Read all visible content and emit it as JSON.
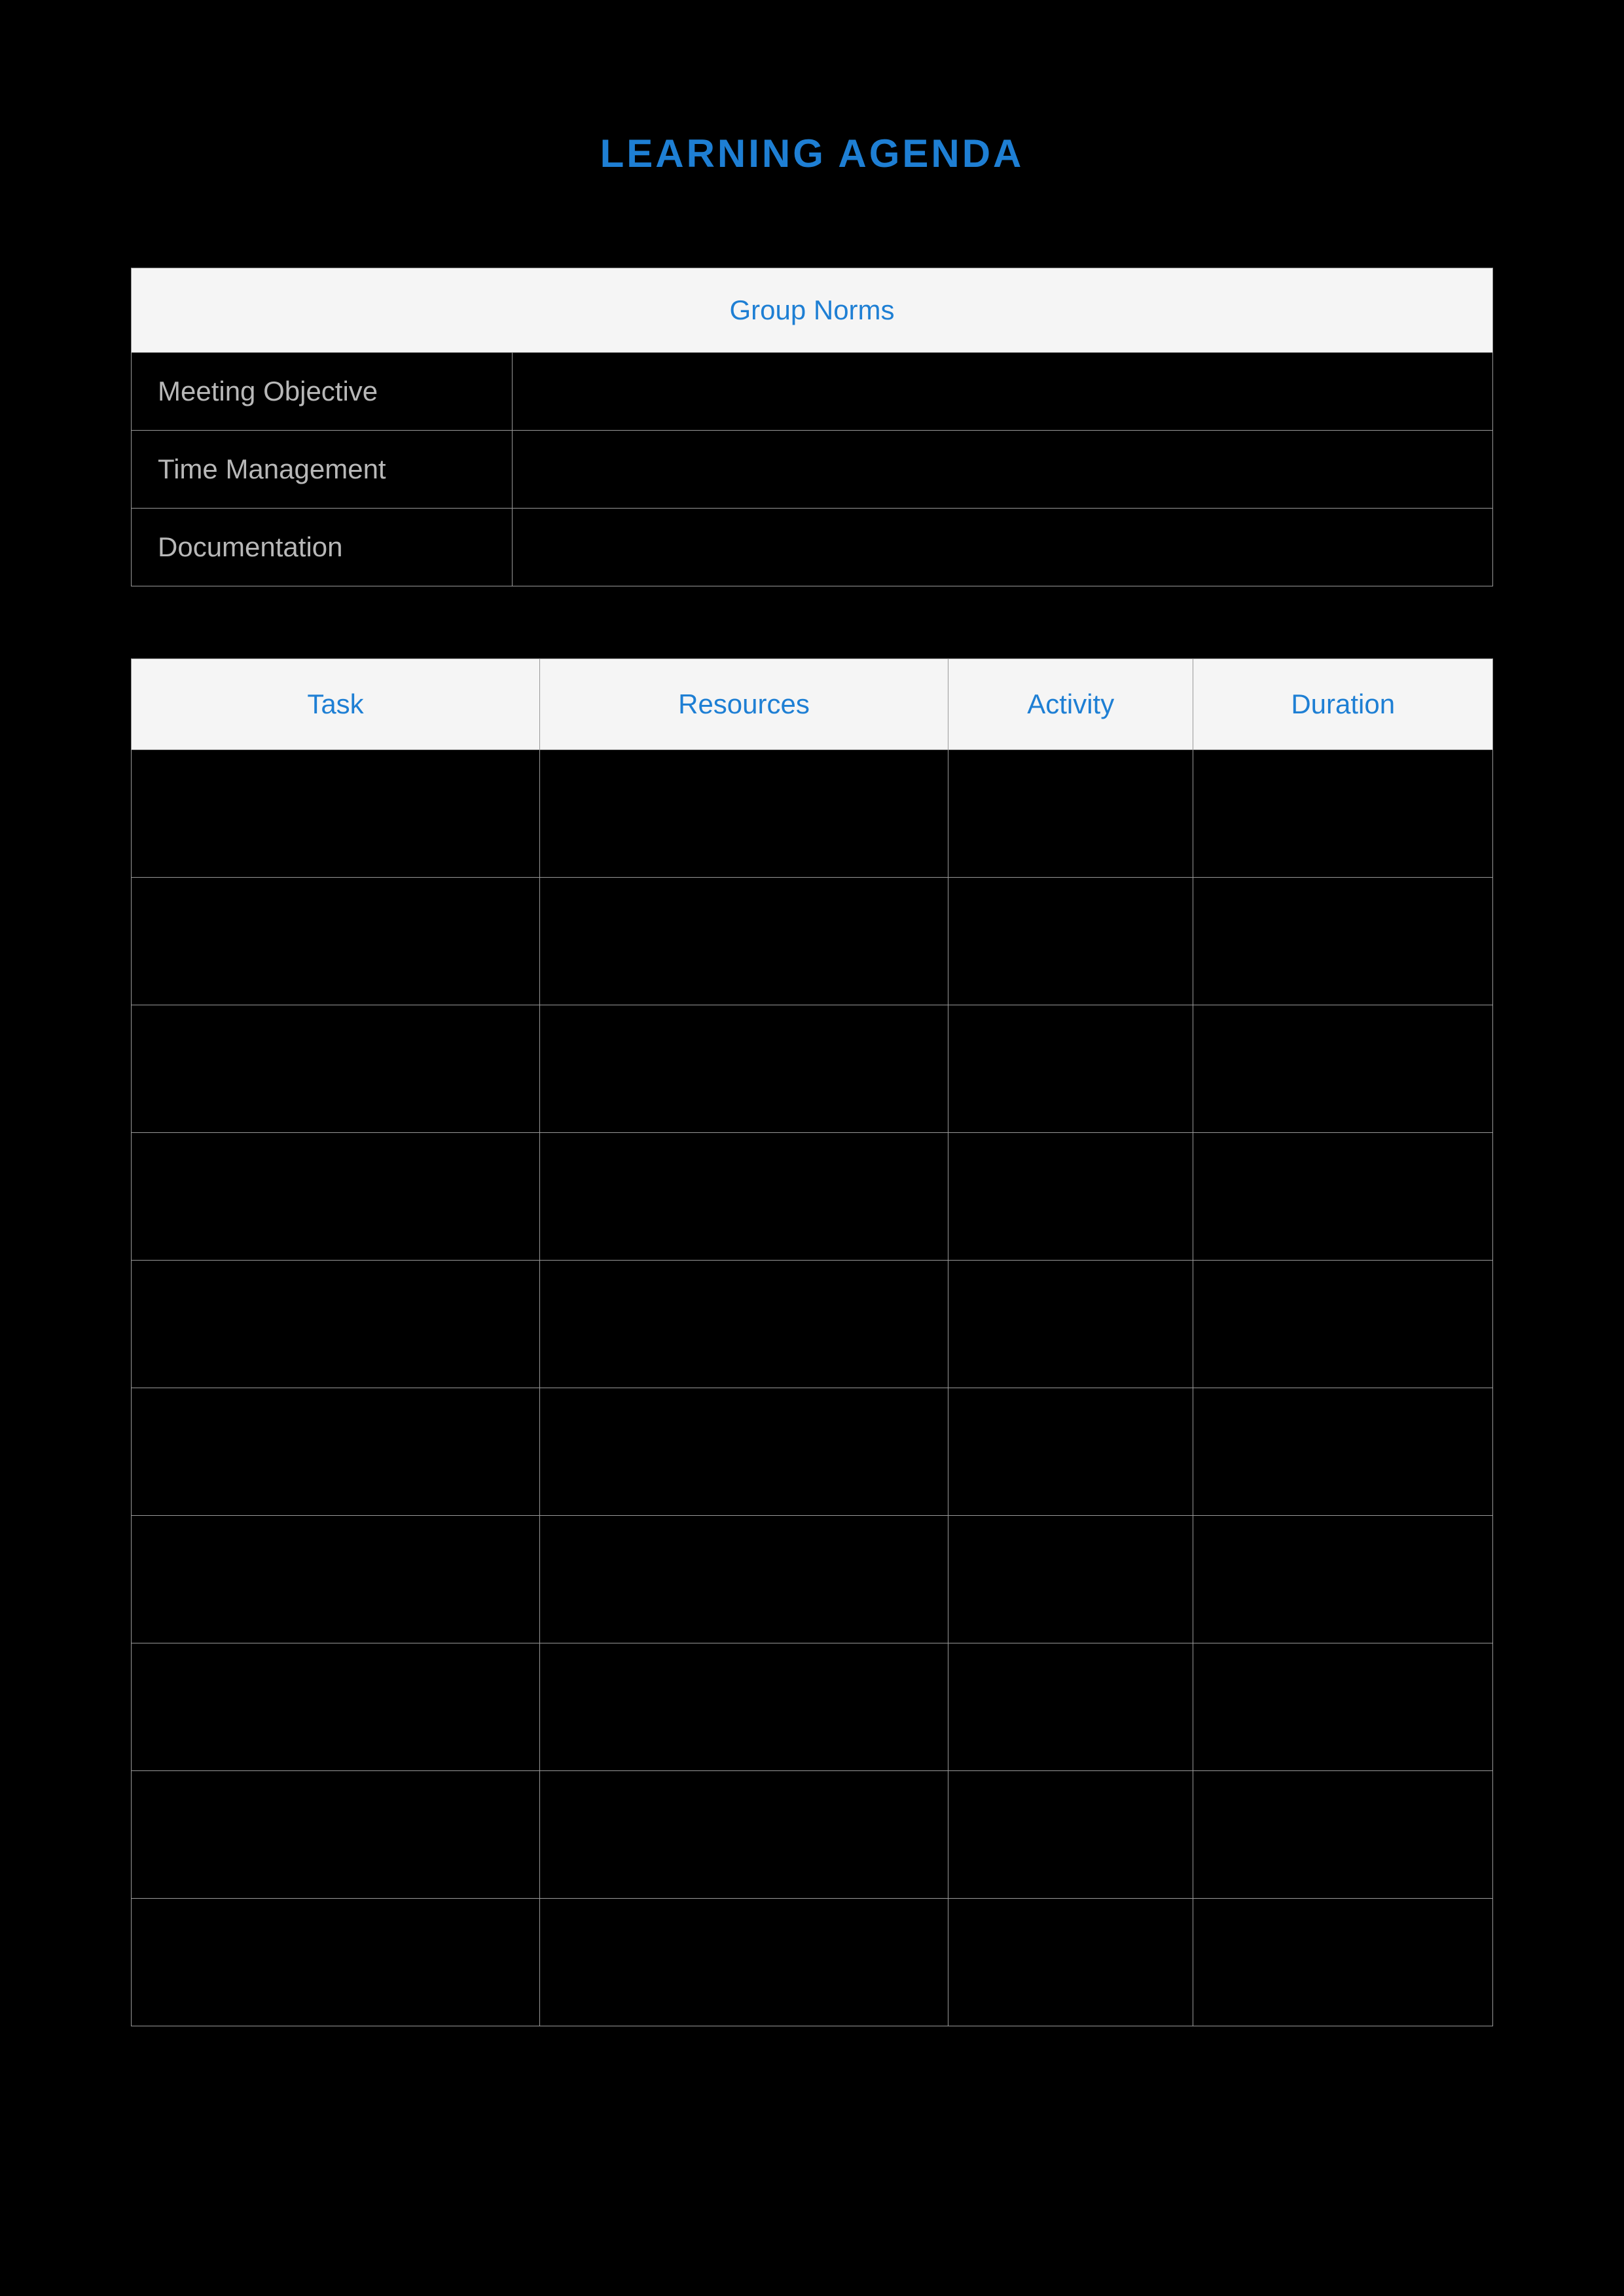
{
  "title": "LEARNING AGENDA",
  "colors": {
    "background": "#000000",
    "accent": "#1e7fd4",
    "headerBg": "#f5f5f5",
    "labelText": "#b8b8b8",
    "border": "#999999"
  },
  "typography": {
    "titleFontSize": 60,
    "titleLetterSpacing": 4,
    "headerFontSize": 42,
    "labelFontSize": 42
  },
  "normsTable": {
    "header": "Group Norms",
    "rows": [
      {
        "label": "Meeting Objective",
        "value": ""
      },
      {
        "label": "Time Management",
        "value": ""
      },
      {
        "label": "Documentation",
        "value": ""
      }
    ],
    "labelColumnWidthPct": 28
  },
  "tasksTable": {
    "columns": [
      {
        "label": "Task",
        "widthPct": 30
      },
      {
        "label": "Resources",
        "widthPct": 30
      },
      {
        "label": "Activity",
        "widthPct": 18
      },
      {
        "label": "Duration",
        "widthPct": 22
      }
    ],
    "rowCount": 10,
    "rowHeightPx": 195,
    "rows": [
      [
        "",
        "",
        "",
        ""
      ],
      [
        "",
        "",
        "",
        ""
      ],
      [
        "",
        "",
        "",
        ""
      ],
      [
        "",
        "",
        "",
        ""
      ],
      [
        "",
        "",
        "",
        ""
      ],
      [
        "",
        "",
        "",
        ""
      ],
      [
        "",
        "",
        "",
        ""
      ],
      [
        "",
        "",
        "",
        ""
      ],
      [
        "",
        "",
        "",
        ""
      ],
      [
        "",
        "",
        "",
        ""
      ]
    ]
  }
}
